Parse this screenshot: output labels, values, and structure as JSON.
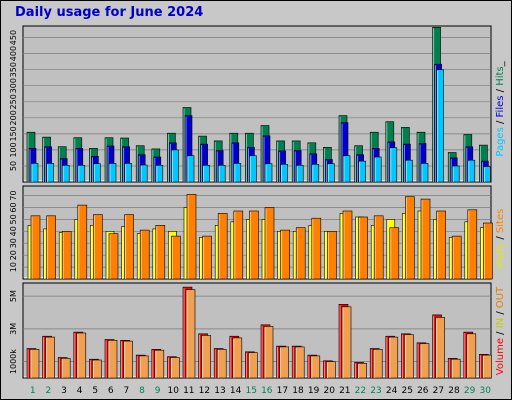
{
  "title": "Daily usage for June 2024",
  "colors": {
    "hits": "#007f4f",
    "files": "#0000cc",
    "pages": "#00c8ff",
    "visits": "#ffff00",
    "sites": "#ff8000",
    "volume": "#ff0000",
    "volume_out": "#f0a050",
    "day_weekday": "#000000",
    "day_weekend": "#00805a"
  },
  "chart_data": [
    {
      "type": "bar",
      "name_label": "Pages / Files / Hits",
      "legend": [
        {
          "name": "Pages",
          "color": "#00c8ff"
        },
        {
          "name": "Files",
          "color": "#0000cc"
        },
        {
          "name": "Hits",
          "color": "#007f4f"
        }
      ],
      "y_ticks": [
        "50",
        "100",
        "150",
        "200",
        "250",
        "300",
        "350",
        "400",
        "450"
      ],
      "ylim": [
        0,
        486
      ],
      "x": [
        1,
        2,
        3,
        4,
        5,
        6,
        7,
        8,
        9,
        10,
        11,
        12,
        13,
        14,
        15,
        16,
        17,
        18,
        19,
        20,
        21,
        22,
        23,
        24,
        25,
        26,
        27,
        28,
        29,
        30
      ],
      "series": [
        {
          "name": "Hits",
          "values": [
            155,
            140,
            110,
            138,
            105,
            138,
            137,
            113,
            103,
            152,
            232,
            143,
            128,
            152,
            152,
            176,
            128,
            128,
            122,
            108,
            207,
            113,
            155,
            188,
            170,
            155,
            482,
            92,
            148,
            115
          ]
        },
        {
          "name": "Files",
          "values": [
            105,
            110,
            73,
            105,
            80,
            112,
            110,
            85,
            78,
            122,
            207,
            118,
            98,
            122,
            108,
            144,
            97,
            98,
            88,
            70,
            185,
            85,
            105,
            125,
            118,
            120,
            367,
            75,
            110,
            65
          ]
        },
        {
          "name": "Pages",
          "values": [
            58,
            58,
            52,
            52,
            57,
            58,
            58,
            53,
            52,
            100,
            82,
            52,
            52,
            58,
            82,
            57,
            55,
            52,
            55,
            57,
            82,
            65,
            78,
            107,
            68,
            58,
            350,
            50,
            68,
            48
          ]
        }
      ]
    },
    {
      "type": "bar",
      "name_label": "Visits / Sites",
      "legend": [
        {
          "name": "Visits",
          "color": "#ffff00"
        },
        {
          "name": "Sites",
          "color": "#ff8000"
        }
      ],
      "y_ticks": [
        "10",
        "20",
        "30",
        "40",
        "50",
        "60",
        "70"
      ],
      "ylim": [
        0,
        78
      ],
      "x": [
        1,
        2,
        3,
        4,
        5,
        6,
        7,
        8,
        9,
        10,
        11,
        12,
        13,
        14,
        15,
        16,
        17,
        18,
        19,
        20,
        21,
        22,
        23,
        24,
        25,
        26,
        27,
        28,
        29,
        30
      ],
      "series": [
        {
          "name": "Visits",
          "values": [
            45,
            42,
            39,
            50,
            45,
            40,
            44,
            38,
            42,
            40,
            60,
            35,
            45,
            48,
            50,
            50,
            40,
            40,
            45,
            40,
            55,
            52,
            45,
            50,
            55,
            57,
            50,
            35,
            48,
            43
          ]
        },
        {
          "name": "Sites",
          "values": [
            53,
            53,
            40,
            62,
            54,
            38,
            54,
            41,
            45,
            36,
            71,
            36,
            55,
            57,
            57,
            60,
            41,
            43,
            51,
            40,
            57,
            52,
            53,
            43,
            69,
            67,
            57,
            36,
            58,
            47
          ]
        }
      ]
    },
    {
      "type": "bar",
      "name_label": "Volume / IN / OUT",
      "legend": [
        {
          "name": "Volume",
          "color": "#ff0000"
        },
        {
          "name": "IN",
          "color": "#ffff00"
        },
        {
          "name": "OUT",
          "color": "#f0a050"
        }
      ],
      "y_ticks": [
        "1000k",
        "3M",
        "5M"
      ],
      "ylim": [
        0,
        5.8
      ],
      "x": [
        1,
        2,
        3,
        4,
        5,
        6,
        7,
        8,
        9,
        10,
        11,
        12,
        13,
        14,
        15,
        16,
        17,
        18,
        19,
        20,
        21,
        22,
        23,
        24,
        25,
        26,
        27,
        28,
        29,
        30
      ],
      "series": [
        {
          "name": "Volume",
          "values": [
            1.8,
            2.55,
            1.25,
            2.8,
            1.15,
            2.35,
            2.3,
            1.4,
            1.75,
            1.3,
            5.55,
            2.7,
            1.8,
            2.55,
            1.6,
            3.25,
            1.95,
            1.95,
            1.4,
            1.05,
            4.5,
            0.95,
            1.8,
            2.55,
            2.7,
            2.15,
            3.85,
            1.2,
            2.8,
            1.45
          ]
        },
        {
          "name": "OUT",
          "values": [
            1.75,
            2.5,
            1.2,
            2.75,
            1.1,
            2.3,
            2.25,
            1.35,
            1.7,
            1.25,
            5.4,
            2.6,
            1.75,
            2.45,
            1.55,
            3.15,
            1.9,
            1.9,
            1.35,
            1.0,
            4.35,
            0.9,
            1.75,
            2.5,
            2.65,
            2.1,
            3.7,
            1.15,
            2.7,
            1.4
          ]
        }
      ]
    }
  ],
  "days": [
    {
      "label": "1",
      "weekend": true
    },
    {
      "label": "2",
      "weekend": true
    },
    {
      "label": "3",
      "weekend": false
    },
    {
      "label": "4",
      "weekend": false
    },
    {
      "label": "5",
      "weekend": false
    },
    {
      "label": "6",
      "weekend": false
    },
    {
      "label": "7",
      "weekend": false
    },
    {
      "label": "8",
      "weekend": true
    },
    {
      "label": "9",
      "weekend": true
    },
    {
      "label": "10",
      "weekend": false
    },
    {
      "label": "11",
      "weekend": false
    },
    {
      "label": "12",
      "weekend": false
    },
    {
      "label": "13",
      "weekend": false
    },
    {
      "label": "14",
      "weekend": false
    },
    {
      "label": "15",
      "weekend": true
    },
    {
      "label": "16",
      "weekend": true
    },
    {
      "label": "17",
      "weekend": false
    },
    {
      "label": "18",
      "weekend": false
    },
    {
      "label": "19",
      "weekend": false
    },
    {
      "label": "20",
      "weekend": false
    },
    {
      "label": "21",
      "weekend": false
    },
    {
      "label": "22",
      "weekend": true
    },
    {
      "label": "23",
      "weekend": true
    },
    {
      "label": "24",
      "weekend": false
    },
    {
      "label": "25",
      "weekend": false
    },
    {
      "label": "26",
      "weekend": false
    },
    {
      "label": "27",
      "weekend": false
    },
    {
      "label": "28",
      "weekend": false
    },
    {
      "label": "29",
      "weekend": true
    },
    {
      "label": "30",
      "weekend": true
    }
  ],
  "side_labels": {
    "top": [
      {
        "text": "Pages",
        "color": "#00c8ff"
      },
      {
        "text": " / ",
        "color": "#000000"
      },
      {
        "text": "Files",
        "color": "#0000cc"
      },
      {
        "text": " / ",
        "color": "#000000"
      },
      {
        "text": "Hits",
        "color": "#007f4f"
      },
      {
        "text": "_",
        "color": "#000000"
      }
    ],
    "middle": [
      {
        "text": "Visits",
        "color": "#e6e600"
      },
      {
        "text": " / ",
        "color": "#000000"
      },
      {
        "text": "Sites",
        "color": "#ff8000"
      }
    ],
    "bottom": [
      {
        "text": "Volume",
        "color": "#ff0000"
      },
      {
        "text": " / ",
        "color": "#000000"
      },
      {
        "text": "IN",
        "color": "#c8c800"
      },
      {
        "text": " / ",
        "color": "#000000"
      },
      {
        "text": "OUT",
        "color": "#e08000"
      }
    ]
  }
}
